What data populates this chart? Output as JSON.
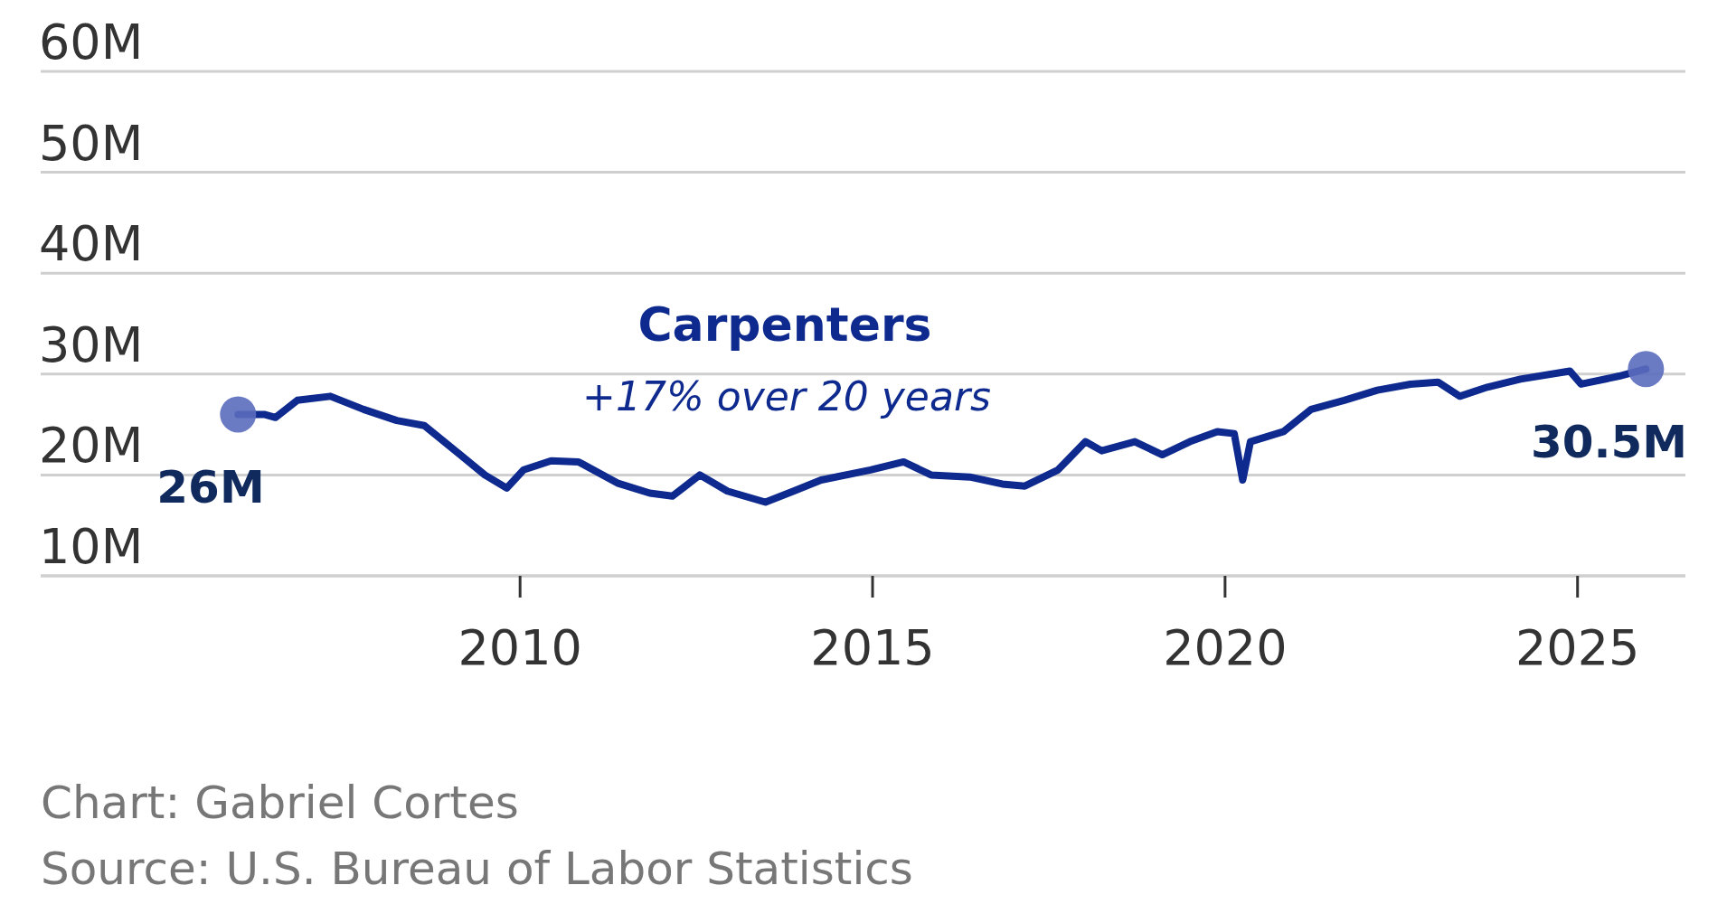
{
  "chart_data": {
    "type": "line",
    "annotations": [
      "+17% over 20 years",
      "Chart: Gabriel Cortes",
      "Source: U.S. Bureau of Labor Statistics"
    ],
    "xlim": [
      2003.2,
      2026.53
    ],
    "xticks": [
      2010,
      2015,
      2020,
      2025
    ],
    "ylim": [
      10,
      60
    ],
    "yticks": [
      {
        "value": 10,
        "label": "10M"
      },
      {
        "value": 20,
        "label": "20M"
      },
      {
        "value": 30,
        "label": "30M"
      },
      {
        "value": 40,
        "label": "40M"
      },
      {
        "value": 50,
        "label": "50M"
      },
      {
        "value": 60,
        "label": "60M"
      }
    ],
    "grid": "y",
    "series": [
      {
        "name": "Carpenters",
        "color": "#0f2a8f",
        "x": [
          2006.0,
          2006.37,
          2006.53,
          2006.84,
          2007.31,
          2007.78,
          2008.25,
          2008.64,
          2009.03,
          2009.5,
          2009.81,
          2010.05,
          2010.44,
          2010.83,
          2011.38,
          2011.84,
          2012.16,
          2012.55,
          2012.94,
          2013.48,
          2013.88,
          2014.27,
          2014.97,
          2015.44,
          2015.83,
          2016.38,
          2016.84,
          2017.16,
          2017.63,
          2018.02,
          2018.25,
          2018.72,
          2019.11,
          2019.5,
          2019.89,
          2020.13,
          2020.25,
          2020.36,
          2020.83,
          2021.22,
          2021.69,
          2022.16,
          2022.63,
          2023.02,
          2023.33,
          2023.72,
          2024.19,
          2024.89,
          2025.05,
          2025.59,
          2025.97
        ],
        "values": [
          26,
          26,
          25.7,
          27.4,
          27.8,
          26.5,
          25.4,
          24.9,
          22.7,
          20,
          18.7,
          20.5,
          21.4,
          21.3,
          19.2,
          18.2,
          17.9,
          20,
          18.4,
          17.3,
          18.4,
          19.5,
          20.5,
          21.3,
          20,
          19.8,
          19.1,
          18.9,
          20.5,
          23.3,
          22.4,
          23.3,
          22,
          23.3,
          24.3,
          24.1,
          19.5,
          23.3,
          24.3,
          26.5,
          27.4,
          28.4,
          29,
          29.2,
          27.8,
          28.7,
          29.5,
          30.3,
          29,
          29.8,
          30.5
        ]
      },
      {
        "type": "scatter",
        "color": "#5a6bbd",
        "x": [
          2006.0,
          2025.97
        ],
        "values": [
          26,
          30.5
        ],
        "value_labels": [
          "26M",
          "30.5M"
        ]
      }
    ]
  }
}
